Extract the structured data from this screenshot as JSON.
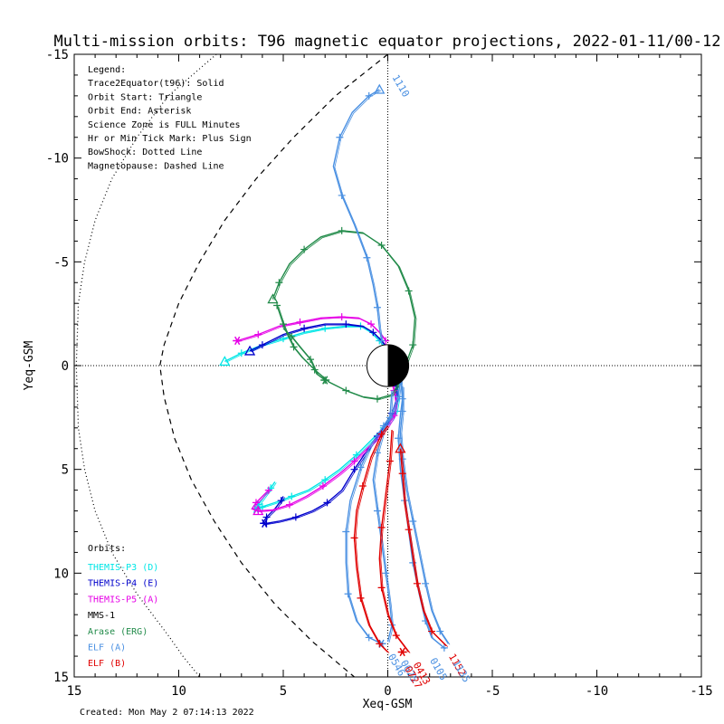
{
  "chart_data": {
    "type": "line",
    "title": "Multi-mission orbits: T96 magnetic equator projections, 2022-01-11/00-12",
    "xlabel": "Xeq-GSM",
    "ylabel": "Yeq-GSM",
    "xlim": [
      15,
      -15
    ],
    "ylim": [
      -15,
      15
    ],
    "x_ticks": [
      15,
      10,
      5,
      0,
      -5,
      -10,
      -15
    ],
    "y_ticks": [
      -15,
      -10,
      -5,
      0,
      5,
      10,
      15
    ],
    "x_tick_labels": [
      "15",
      "10",
      "5",
      "0",
      "-5",
      "-10",
      "-15"
    ],
    "y_tick_labels": [
      "-15",
      "-10",
      "-5",
      "0",
      "5",
      "10",
      "15"
    ],
    "legend_lines": [
      "Legend:",
      "Trace2Equator(t96): Solid",
      "Orbit Start: Triangle",
      "Orbit End: Asterisk",
      "Science Zone is FULL Minutes",
      "Hr or Min Tick Mark: Plus Sign",
      "BowShock: Dotted Line",
      "Magnetopause: Dashed Line"
    ],
    "orbits_heading": "Orbits:",
    "created_text": "Created: Mon May  2 07:14:13 2022",
    "colors": {
      "themis_p3": "#00e6e6",
      "themis_p4": "#0000cc",
      "themis_p5": "#e600e6",
      "mms1": "#000000",
      "arase": "#228b4a",
      "elf_a": "#4a90e2",
      "elf_b": "#e00000"
    },
    "series": [
      {
        "name": "THEMIS-P3 (D)",
        "color": "#00e6e6",
        "segments": [
          [
            [
              7.8,
              -0.2
            ],
            [
              7.0,
              -0.6
            ],
            [
              6.0,
              -1.0
            ],
            [
              5.0,
              -1.3
            ],
            [
              4.0,
              -1.6
            ],
            [
              3.0,
              -1.8
            ],
            [
              2.0,
              -1.9
            ],
            [
              1.3,
              -1.9
            ],
            [
              0.8,
              -1.6
            ],
            [
              0.4,
              -1.2
            ],
            [
              0.1,
              -0.8
            ]
          ],
          [
            [
              -0.2,
              0.2
            ],
            [
              -0.4,
              0.9
            ],
            [
              -0.5,
              1.6
            ],
            [
              -0.4,
              2.2
            ],
            [
              -0.2,
              2.6
            ],
            [
              0.2,
              3.0
            ],
            [
              0.8,
              3.6
            ],
            [
              1.5,
              4.3
            ],
            [
              2.3,
              5.0
            ],
            [
              3.0,
              5.5
            ],
            [
              3.8,
              6.0
            ],
            [
              4.6,
              6.3
            ],
            [
              5.4,
              6.6
            ],
            [
              6.0,
              6.8
            ],
            [
              6.3,
              6.9
            ],
            [
              6.2,
              6.7
            ],
            [
              5.9,
              6.3
            ],
            [
              5.6,
              5.9
            ],
            [
              5.4,
              5.6
            ]
          ]
        ],
        "start": [
          7.8,
          -0.2
        ],
        "end": [
          6.3,
          6.9
        ]
      },
      {
        "name": "THEMIS-P4 (E)",
        "color": "#0000cc",
        "segments": [
          [
            [
              6.6,
              -0.7
            ],
            [
              6.0,
              -1.0
            ],
            [
              5.0,
              -1.5
            ],
            [
              4.0,
              -1.8
            ],
            [
              3.0,
              -2.0
            ],
            [
              2.0,
              -2.0
            ],
            [
              1.2,
              -1.9
            ],
            [
              0.7,
              -1.6
            ],
            [
              0.3,
              -1.2
            ],
            [
              0.0,
              -0.8
            ],
            [
              -0.2,
              -0.4
            ]
          ],
          [
            [
              -0.3,
              0.3
            ],
            [
              -0.4,
              1.0
            ],
            [
              -0.4,
              1.7
            ],
            [
              -0.2,
              2.3
            ],
            [
              0.1,
              2.8
            ],
            [
              0.5,
              3.4
            ],
            [
              1.0,
              4.1
            ],
            [
              1.6,
              5.0
            ],
            [
              2.2,
              6.0
            ],
            [
              2.9,
              6.6
            ],
            [
              3.6,
              7.0
            ],
            [
              4.4,
              7.3
            ],
            [
              5.2,
              7.5
            ],
            [
              5.8,
              7.6
            ],
            [
              6.0,
              7.6
            ],
            [
              5.8,
              7.3
            ],
            [
              5.4,
              6.9
            ],
            [
              5.1,
              6.5
            ],
            [
              5.0,
              6.3
            ]
          ]
        ],
        "start": [
          6.6,
          -0.7
        ],
        "end": [
          5.9,
          7.6
        ]
      },
      {
        "name": "THEMIS-P5 (A)",
        "color": "#e600e6",
        "segments": [
          [
            [
              7.2,
              -1.2
            ],
            [
              6.2,
              -1.5
            ],
            [
              5.2,
              -1.9
            ],
            [
              4.2,
              -2.1
            ],
            [
              3.2,
              -2.3
            ],
            [
              2.2,
              -2.35
            ],
            [
              1.4,
              -2.3
            ],
            [
              0.8,
              -2.0
            ],
            [
              0.4,
              -1.6
            ],
            [
              0.1,
              -1.2
            ]
          ],
          [
            [
              -0.1,
              0.5
            ],
            [
              -0.3,
              1.2
            ],
            [
              -0.4,
              1.8
            ],
            [
              -0.3,
              2.4
            ],
            [
              0.0,
              2.9
            ],
            [
              0.4,
              3.4
            ],
            [
              1.0,
              4.0
            ],
            [
              1.6,
              4.6
            ],
            [
              2.3,
              5.2
            ],
            [
              3.1,
              5.8
            ],
            [
              3.9,
              6.3
            ],
            [
              4.7,
              6.7
            ],
            [
              5.5,
              6.95
            ],
            [
              6.2,
              7.0
            ],
            [
              6.5,
              6.9
            ],
            [
              6.3,
              6.6
            ],
            [
              6.0,
              6.3
            ],
            [
              5.7,
              6.0
            ]
          ]
        ],
        "start": [
          6.2,
          7.0
        ],
        "end": [
          7.2,
          -1.2
        ]
      },
      {
        "name": "Arase (ERG)",
        "color": "#228b4a",
        "segments": [
          [
            [
              5.5,
              -3.2
            ],
            [
              5.2,
              -4.0
            ],
            [
              4.7,
              -4.9
            ],
            [
              4.0,
              -5.6
            ],
            [
              3.2,
              -6.2
            ],
            [
              2.2,
              -6.5
            ],
            [
              1.2,
              -6.4
            ],
            [
              0.3,
              -5.8
            ],
            [
              -0.5,
              -4.8
            ],
            [
              -1.0,
              -3.6
            ],
            [
              -1.3,
              -2.3
            ],
            [
              -1.2,
              -1.0
            ],
            [
              -0.8,
              0.1
            ],
            [
              -0.5,
              0.9
            ],
            [
              -0.2,
              1.4
            ],
            [
              0.5,
              1.6
            ],
            [
              1.2,
              1.5
            ],
            [
              2.0,
              1.2
            ],
            [
              2.8,
              0.8
            ],
            [
              3.5,
              0.2
            ],
            [
              4.1,
              -0.4
            ],
            [
              4.5,
              -0.9
            ],
            [
              4.8,
              -1.5
            ],
            [
              5.0,
              -2.0
            ],
            [
              5.2,
              -2.6
            ],
            [
              5.3,
              -2.9
            ]
          ],
          [
            [
              5.0,
              -1.8
            ],
            [
              4.6,
              -1.4
            ],
            [
              4.2,
              -0.9
            ],
            [
              3.7,
              -0.3
            ],
            [
              3.4,
              0.4
            ],
            [
              3.0,
              0.7
            ]
          ]
        ],
        "start": [
          5.5,
          -3.2
        ],
        "end": [
          3.0,
          0.7
        ]
      },
      {
        "name": "ELF (A)",
        "color": "#4a90e2",
        "segments": [
          [
            [
              0.4,
              -13.3
            ],
            [
              0.9,
              -13.0
            ],
            [
              1.7,
              -12.2
            ],
            [
              2.3,
              -11.0
            ],
            [
              2.6,
              -9.6
            ],
            [
              2.2,
              -8.2
            ],
            [
              1.6,
              -6.8
            ],
            [
              1.0,
              -5.2
            ],
            [
              0.7,
              -3.9
            ],
            [
              0.5,
              -2.8
            ],
            [
              0.4,
              -1.8
            ],
            [
              0.3,
              -1.2
            ]
          ],
          [
            [
              -0.2,
              -1.0
            ],
            [
              -0.5,
              -0.2
            ],
            [
              -0.6,
              0.7
            ],
            [
              -0.5,
              1.5
            ],
            [
              -0.2,
              2.3
            ],
            [
              0.2,
              2.9
            ],
            [
              0.8,
              3.8
            ],
            [
              1.3,
              4.9
            ],
            [
              1.8,
              6.5
            ],
            [
              2.0,
              8.0
            ],
            [
              2.0,
              9.5
            ],
            [
              1.9,
              11.0
            ],
            [
              1.5,
              12.3
            ],
            [
              0.9,
              13.1
            ],
            [
              0.3,
              13.4
            ]
          ],
          [
            [
              -0.2,
              1.2
            ],
            [
              -0.1,
              2.5
            ],
            [
              0.2,
              3.1
            ],
            [
              0.5,
              4.2
            ],
            [
              0.7,
              5.5
            ],
            [
              0.5,
              7.0
            ],
            [
              0.3,
              8.5
            ],
            [
              0.1,
              10.0
            ],
            [
              -0.1,
              11.5
            ],
            [
              -0.2,
              12.5
            ],
            [
              0.0,
              13.3
            ]
          ],
          [
            [
              -0.6,
              0.5
            ],
            [
              -0.7,
              1.6
            ],
            [
              -0.6,
              2.4
            ],
            [
              -0.5,
              3.5
            ],
            [
              -0.6,
              5.0
            ],
            [
              -0.8,
              6.5
            ],
            [
              -1.0,
              8.0
            ],
            [
              -1.2,
              9.5
            ],
            [
              -1.5,
              11.0
            ],
            [
              -1.8,
              12.3
            ],
            [
              -2.1,
              13.1
            ],
            [
              -2.7,
              13.6
            ]
          ],
          [
            [
              -0.7,
              1.0
            ],
            [
              -0.7,
              2.2
            ],
            [
              -0.6,
              3.2
            ],
            [
              -0.7,
              4.5
            ],
            [
              -0.9,
              6.0
            ],
            [
              -1.2,
              7.5
            ],
            [
              -1.5,
              9.0
            ],
            [
              -1.8,
              10.5
            ],
            [
              -2.1,
              11.8
            ],
            [
              -2.5,
              12.8
            ],
            [
              -2.9,
              13.4
            ]
          ]
        ],
        "start": [
          0.4,
          -13.3
        ],
        "end": [
          0.3,
          13.4
        ]
      },
      {
        "name": "ELF (B)",
        "color": "#e00000",
        "segments": [
          [
            [
              0.0,
              2.9
            ],
            [
              0.3,
              3.3
            ],
            [
              0.8,
              4.4
            ],
            [
              1.2,
              5.8
            ],
            [
              1.5,
              7.0
            ],
            [
              1.6,
              8.3
            ],
            [
              1.5,
              9.7
            ],
            [
              1.3,
              11.2
            ],
            [
              0.9,
              12.5
            ],
            [
              0.4,
              13.4
            ],
            [
              0.0,
              13.8
            ]
          ],
          [
            [
              -0.2,
              3.1
            ],
            [
              -0.1,
              4.6
            ],
            [
              0.1,
              6.2
            ],
            [
              0.3,
              7.8
            ],
            [
              0.4,
              9.3
            ],
            [
              0.3,
              10.7
            ],
            [
              0.0,
              12.0
            ],
            [
              -0.4,
              13.0
            ],
            [
              -1.0,
              13.8
            ]
          ],
          [
            [
              -0.6,
              4.0
            ],
            [
              -0.7,
              5.2
            ],
            [
              -0.8,
              6.6
            ],
            [
              -1.0,
              7.9
            ],
            [
              -1.2,
              9.2
            ],
            [
              -1.4,
              10.5
            ],
            [
              -1.7,
              11.8
            ],
            [
              -2.1,
              12.8
            ],
            [
              -2.8,
              13.5
            ]
          ]
        ],
        "start": [
          -0.6,
          4.0
        ],
        "end": [
          -0.7,
          13.8
        ]
      }
    ],
    "bow_shock": {
      "style": "dotted",
      "points": [
        [
          8.2,
          -15.0
        ],
        [
          10.5,
          -13.0
        ],
        [
          12.0,
          -11.0
        ],
        [
          13.2,
          -9.0
        ],
        [
          14.0,
          -7.0
        ],
        [
          14.5,
          -5.0
        ],
        [
          14.8,
          -3.0
        ],
        [
          14.9,
          0.0
        ],
        [
          14.8,
          3.0
        ],
        [
          14.5,
          5.0
        ],
        [
          14.0,
          7.0
        ],
        [
          13.2,
          9.0
        ],
        [
          12.0,
          11.0
        ],
        [
          10.5,
          13.0
        ],
        [
          9.8,
          14.0
        ],
        [
          9.0,
          15.0
        ]
      ]
    },
    "magnetopause": {
      "style": "dashed",
      "points": [
        [
          0.0,
          -15.0
        ],
        [
          2.5,
          -13.0
        ],
        [
          4.5,
          -11.0
        ],
        [
          6.3,
          -9.0
        ],
        [
          7.8,
          -7.0
        ],
        [
          9.0,
          -5.0
        ],
        [
          10.0,
          -3.0
        ],
        [
          10.7,
          -1.0
        ],
        [
          10.9,
          0.0
        ],
        [
          10.7,
          1.5
        ],
        [
          10.2,
          3.5
        ],
        [
          9.4,
          5.5
        ],
        [
          8.3,
          7.5
        ],
        [
          7.0,
          9.5
        ],
        [
          5.4,
          11.5
        ],
        [
          3.6,
          13.3
        ],
        [
          1.6,
          15.0
        ]
      ]
    },
    "time_labels": [
      {
        "text": "1110",
        "x": -0.2,
        "y": -13.9,
        "color": "#4a90e2",
        "rot": 60
      },
      {
        "text": "0546",
        "x": 0.0,
        "y": 14.0,
        "color": "#4a90e2",
        "rot": 60
      },
      {
        "text": "0625",
        "x": -0.6,
        "y": 14.3,
        "color": "#4a90e2",
        "rot": 60
      },
      {
        "text": "0727",
        "x": -0.8,
        "y": 14.6,
        "color": "#e00000",
        "rot": 60
      },
      {
        "text": "0413",
        "x": -1.2,
        "y": 14.4,
        "color": "#e00000",
        "rot": 60
      },
      {
        "text": "0105",
        "x": -2.0,
        "y": 14.2,
        "color": "#4a90e2",
        "rot": 60
      },
      {
        "text": "1152",
        "x": -2.9,
        "y": 14.0,
        "color": "#e00000",
        "rot": 60
      },
      {
        "text": "1135",
        "x": -3.1,
        "y": 14.3,
        "color": "#4a90e2",
        "rot": 60
      }
    ],
    "grid": false,
    "legend_position": "top-left"
  }
}
